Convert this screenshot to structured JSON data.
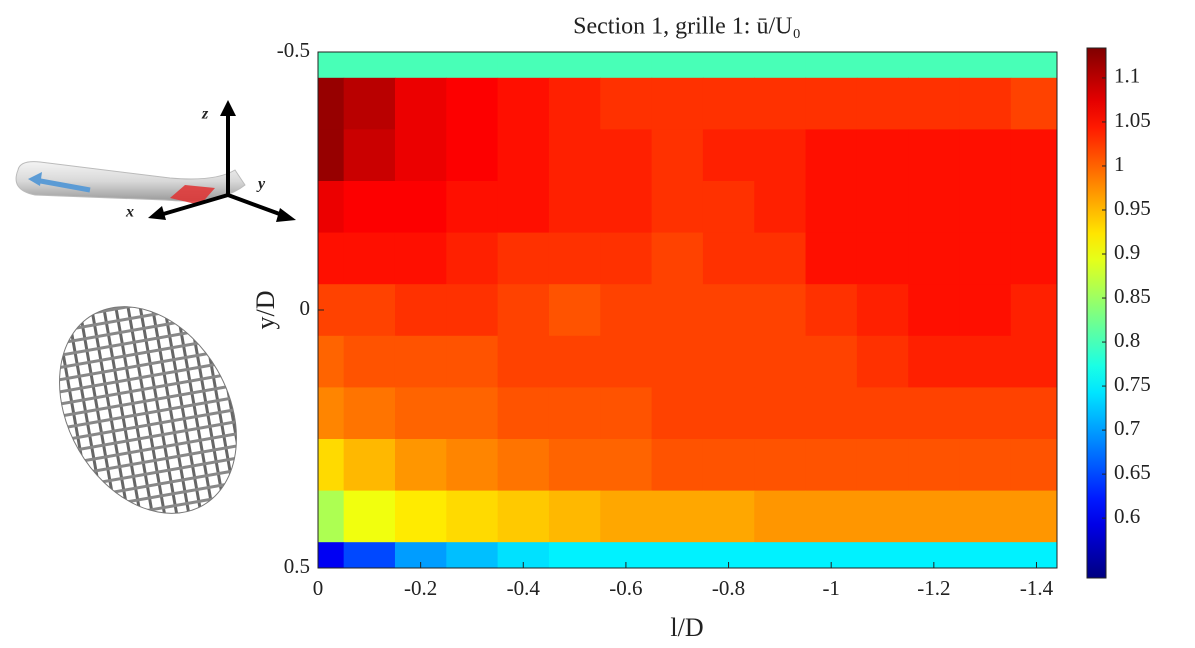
{
  "chart_data": {
    "type": "contour",
    "title": "Section 1, grille 1: ū/U₀",
    "xlabel": "l/D",
    "ylabel": "y/D",
    "x": [
      0,
      -0.1,
      -0.2,
      -0.3,
      -0.4,
      -0.5,
      -0.6,
      -0.7,
      -0.8,
      -0.9,
      -1,
      -1.1,
      -1.2,
      -1.3,
      -1.4
    ],
    "y": [
      -0.5,
      -0.4,
      -0.3,
      -0.2,
      -0.1,
      0,
      0.1,
      0.2,
      0.3,
      0.4,
      0.5
    ],
    "z": [
      [
        0.8,
        0.8,
        0.8,
        0.8,
        0.8,
        0.8,
        0.8,
        0.8,
        0.8,
        0.8,
        0.8,
        0.8,
        0.8,
        0.8,
        0.8
      ],
      [
        1.12,
        1.1,
        1.07,
        1.06,
        1.05,
        1.04,
        1.03,
        1.03,
        1.03,
        1.03,
        1.03,
        1.03,
        1.03,
        1.03,
        1.02
      ],
      [
        1.12,
        1.09,
        1.07,
        1.06,
        1.05,
        1.04,
        1.04,
        1.03,
        1.04,
        1.04,
        1.05,
        1.05,
        1.05,
        1.05,
        1.05
      ],
      [
        1.07,
        1.06,
        1.06,
        1.05,
        1.05,
        1.04,
        1.04,
        1.03,
        1.03,
        1.04,
        1.05,
        1.05,
        1.05,
        1.05,
        1.05
      ],
      [
        1.05,
        1.05,
        1.05,
        1.04,
        1.03,
        1.03,
        1.03,
        1.02,
        1.03,
        1.03,
        1.05,
        1.05,
        1.05,
        1.05,
        1.05
      ],
      [
        1.02,
        1.02,
        1.03,
        1.03,
        1.02,
        1.01,
        1.02,
        1.02,
        1.02,
        1.02,
        1.03,
        1.04,
        1.05,
        1.05,
        1.04
      ],
      [
        1.0,
        1.01,
        1.01,
        1.01,
        1.02,
        1.02,
        1.02,
        1.02,
        1.02,
        1.02,
        1.02,
        1.03,
        1.04,
        1.04,
        1.04
      ],
      [
        0.98,
        0.99,
        1.0,
        1.0,
        1.01,
        1.01,
        1.01,
        1.02,
        1.02,
        1.02,
        1.02,
        1.02,
        1.02,
        1.02,
        1.02
      ],
      [
        0.93,
        0.95,
        0.97,
        0.98,
        0.99,
        1.0,
        1.0,
        1.01,
        1.01,
        1.01,
        1.01,
        1.01,
        1.01,
        1.01,
        1.01
      ],
      [
        0.86,
        0.9,
        0.92,
        0.93,
        0.94,
        0.95,
        0.96,
        0.96,
        0.96,
        0.97,
        0.97,
        0.97,
        0.97,
        0.97,
        0.97
      ],
      [
        0.6,
        0.65,
        0.7,
        0.72,
        0.74,
        0.75,
        0.75,
        0.75,
        0.75,
        0.75,
        0.75,
        0.75,
        0.75,
        0.75,
        0.75
      ]
    ],
    "xlim": [
      0,
      -1.44
    ],
    "ylim": [
      -0.5,
      0.5
    ],
    "y_reversed": true,
    "xticks": [
      0,
      -0.2,
      -0.4,
      -0.6,
      -0.8,
      -1,
      -1.2,
      -1.4
    ],
    "yticks": [
      -0.5,
      0,
      0.5
    ],
    "colormap": "jet",
    "clim": [
      0.532,
      1.134
    ],
    "cticks": [
      1.1,
      1.05,
      1,
      0.95,
      0.9,
      0.85,
      0.8,
      0.75,
      0.7,
      0.65,
      0.6
    ]
  },
  "illustration": {
    "axis_labels": [
      "z",
      "y",
      "x"
    ]
  }
}
